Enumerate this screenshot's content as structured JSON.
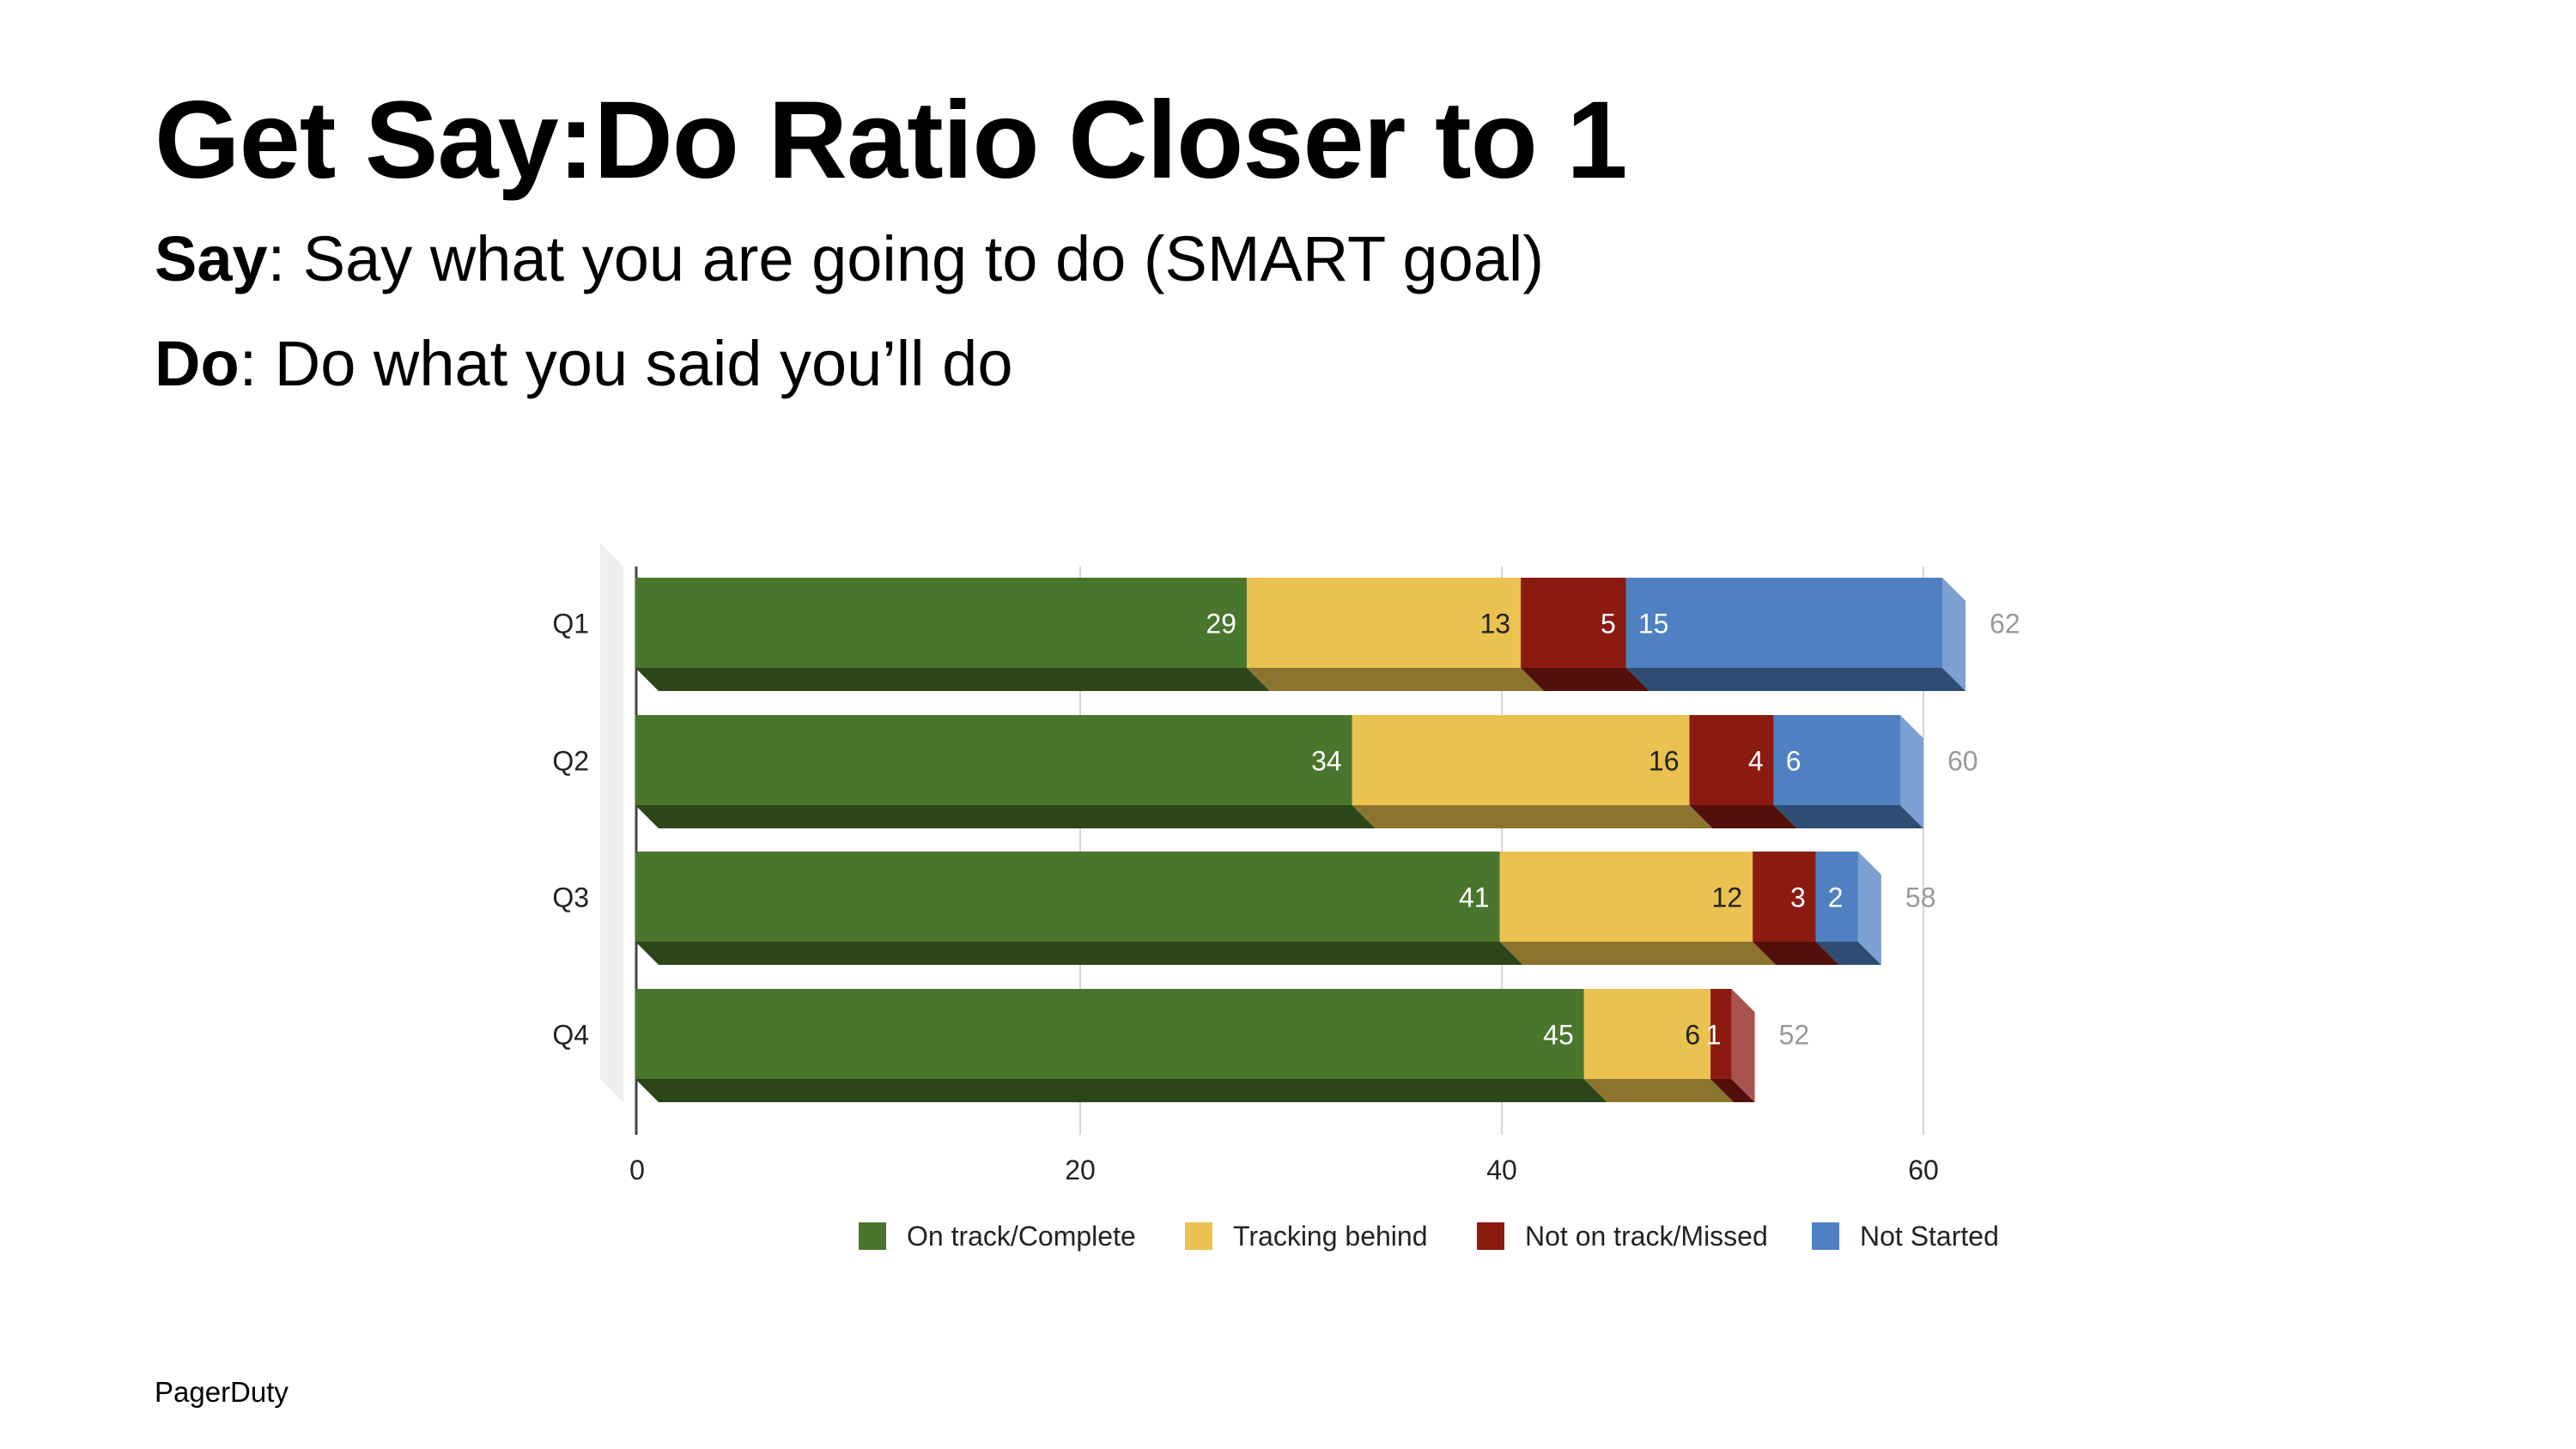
{
  "slide": {
    "title": "Get Say:Do Ratio Closer to 1",
    "say_term": "Say",
    "say_text": ": Say what you are going to do (SMART goal)",
    "do_term": "Do",
    "do_text": ": Do what you said you’ll do",
    "footer_brand": "PagerDuty"
  },
  "chart_data": {
    "type": "bar",
    "orientation": "horizontal",
    "stacked": true,
    "style": "3d",
    "title": "",
    "xlabel": "",
    "ylabel": "",
    "categories": [
      "Q1",
      "Q2",
      "Q3",
      "Q4"
    ],
    "series": [
      {
        "name": "On track/Complete",
        "color": "#4a752c",
        "values": [
          29,
          34,
          41,
          45
        ]
      },
      {
        "name": "Tracking behind",
        "color": "#e9c24f",
        "values": [
          13,
          16,
          12,
          6
        ]
      },
      {
        "name": "Not on track/Missed",
        "color": "#8b1a11",
        "values": [
          5,
          4,
          3,
          1
        ]
      },
      {
        "name": "Not Started",
        "color": "#4f80c2",
        "values": [
          15,
          6,
          2,
          0
        ]
      }
    ],
    "totals": [
      62,
      60,
      58,
      52
    ],
    "xlim": [
      0,
      60
    ],
    "xticks": [
      0,
      20,
      40,
      60
    ],
    "grid": true,
    "legend_position": "bottom"
  }
}
